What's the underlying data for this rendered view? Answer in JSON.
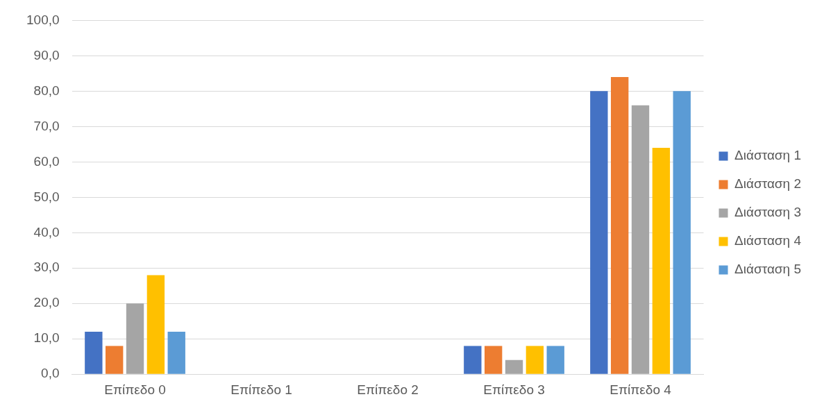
{
  "chart_data": {
    "type": "bar",
    "categories": [
      "Επίπεδο 0",
      "Επίπεδο 1",
      "Επίπεδο 2",
      "Επίπεδο 3",
      "Επίπεδο 4"
    ],
    "series": [
      {
        "name": "Διάσταση 1",
        "color": "#4472c4",
        "values": [
          12,
          0,
          0,
          8,
          80
        ]
      },
      {
        "name": "Διάσταση 2",
        "color": "#ed7d31",
        "values": [
          8,
          0,
          0,
          8,
          84
        ]
      },
      {
        "name": "Διάσταση 3",
        "color": "#a5a5a5",
        "values": [
          20,
          0,
          0,
          4,
          76
        ]
      },
      {
        "name": "Διάσταση 4",
        "color": "#ffc000",
        "values": [
          28,
          0,
          0,
          8,
          64
        ]
      },
      {
        "name": "Διάσταση 5",
        "color": "#5b9bd5",
        "values": [
          12,
          0,
          0,
          8,
          80
        ]
      }
    ],
    "ylim": [
      0,
      100
    ],
    "yticks": [
      {
        "value": 0,
        "label": "0,0"
      },
      {
        "value": 10,
        "label": "10,0"
      },
      {
        "value": 20,
        "label": "20,0"
      },
      {
        "value": 30,
        "label": "30,0"
      },
      {
        "value": 40,
        "label": "40,0"
      },
      {
        "value": 50,
        "label": "50,0"
      },
      {
        "value": 60,
        "label": "60,0"
      },
      {
        "value": 70,
        "label": "70,0"
      },
      {
        "value": 80,
        "label": "80,0"
      },
      {
        "value": 90,
        "label": "90,0"
      },
      {
        "value": 100,
        "label": "100,0"
      }
    ],
    "grid": "y",
    "legend": "right"
  }
}
